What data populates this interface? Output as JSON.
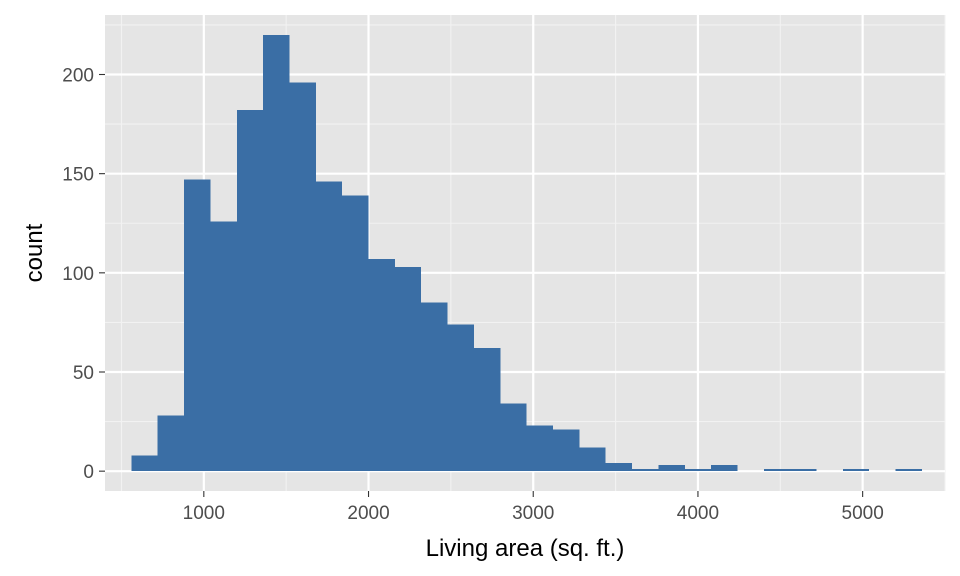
{
  "chart_data": {
    "type": "bar",
    "title": "",
    "xlabel": "Living area (sq. ft.)",
    "ylabel": "count",
    "xlim": [
      400,
      5500
    ],
    "ylim": [
      -10,
      230
    ],
    "x_ticks": [
      1000,
      2000,
      3000,
      4000,
      5000
    ],
    "y_ticks": [
      0,
      50,
      100,
      150,
      200
    ],
    "grid": true,
    "bar_color": "#3a6ea5",
    "panel_bg": "#e5e5e5",
    "bins": [
      {
        "x0": 560,
        "x1": 720,
        "count": 8
      },
      {
        "x0": 720,
        "x1": 880,
        "count": 28
      },
      {
        "x0": 880,
        "x1": 1040,
        "count": 147
      },
      {
        "x0": 1040,
        "x1": 1200,
        "count": 126
      },
      {
        "x0": 1200,
        "x1": 1360,
        "count": 182
      },
      {
        "x0": 1360,
        "x1": 1520,
        "count": 220
      },
      {
        "x0": 1520,
        "x1": 1680,
        "count": 196
      },
      {
        "x0": 1680,
        "x1": 1840,
        "count": 146
      },
      {
        "x0": 1840,
        "x1": 2000,
        "count": 139
      },
      {
        "x0": 2000,
        "x1": 2160,
        "count": 107
      },
      {
        "x0": 2160,
        "x1": 2320,
        "count": 103
      },
      {
        "x0": 2320,
        "x1": 2480,
        "count": 85
      },
      {
        "x0": 2480,
        "x1": 2640,
        "count": 74
      },
      {
        "x0": 2640,
        "x1": 2800,
        "count": 62
      },
      {
        "x0": 2800,
        "x1": 2960,
        "count": 34
      },
      {
        "x0": 2960,
        "x1": 3120,
        "count": 23
      },
      {
        "x0": 3120,
        "x1": 3280,
        "count": 21
      },
      {
        "x0": 3280,
        "x1": 3440,
        "count": 12
      },
      {
        "x0": 3440,
        "x1": 3600,
        "count": 4
      },
      {
        "x0": 3600,
        "x1": 3760,
        "count": 1
      },
      {
        "x0": 3760,
        "x1": 3920,
        "count": 3
      },
      {
        "x0": 3920,
        "x1": 4080,
        "count": 1
      },
      {
        "x0": 4080,
        "x1": 4240,
        "count": 3
      },
      {
        "x0": 4240,
        "x1": 4400,
        "count": 0
      },
      {
        "x0": 4400,
        "x1": 4560,
        "count": 1
      },
      {
        "x0": 4560,
        "x1": 4720,
        "count": 1
      },
      {
        "x0": 4720,
        "x1": 4880,
        "count": 0
      },
      {
        "x0": 4880,
        "x1": 5040,
        "count": 1
      },
      {
        "x0": 5040,
        "x1": 5200,
        "count": 0
      },
      {
        "x0": 5200,
        "x1": 5360,
        "count": 1
      }
    ]
  }
}
